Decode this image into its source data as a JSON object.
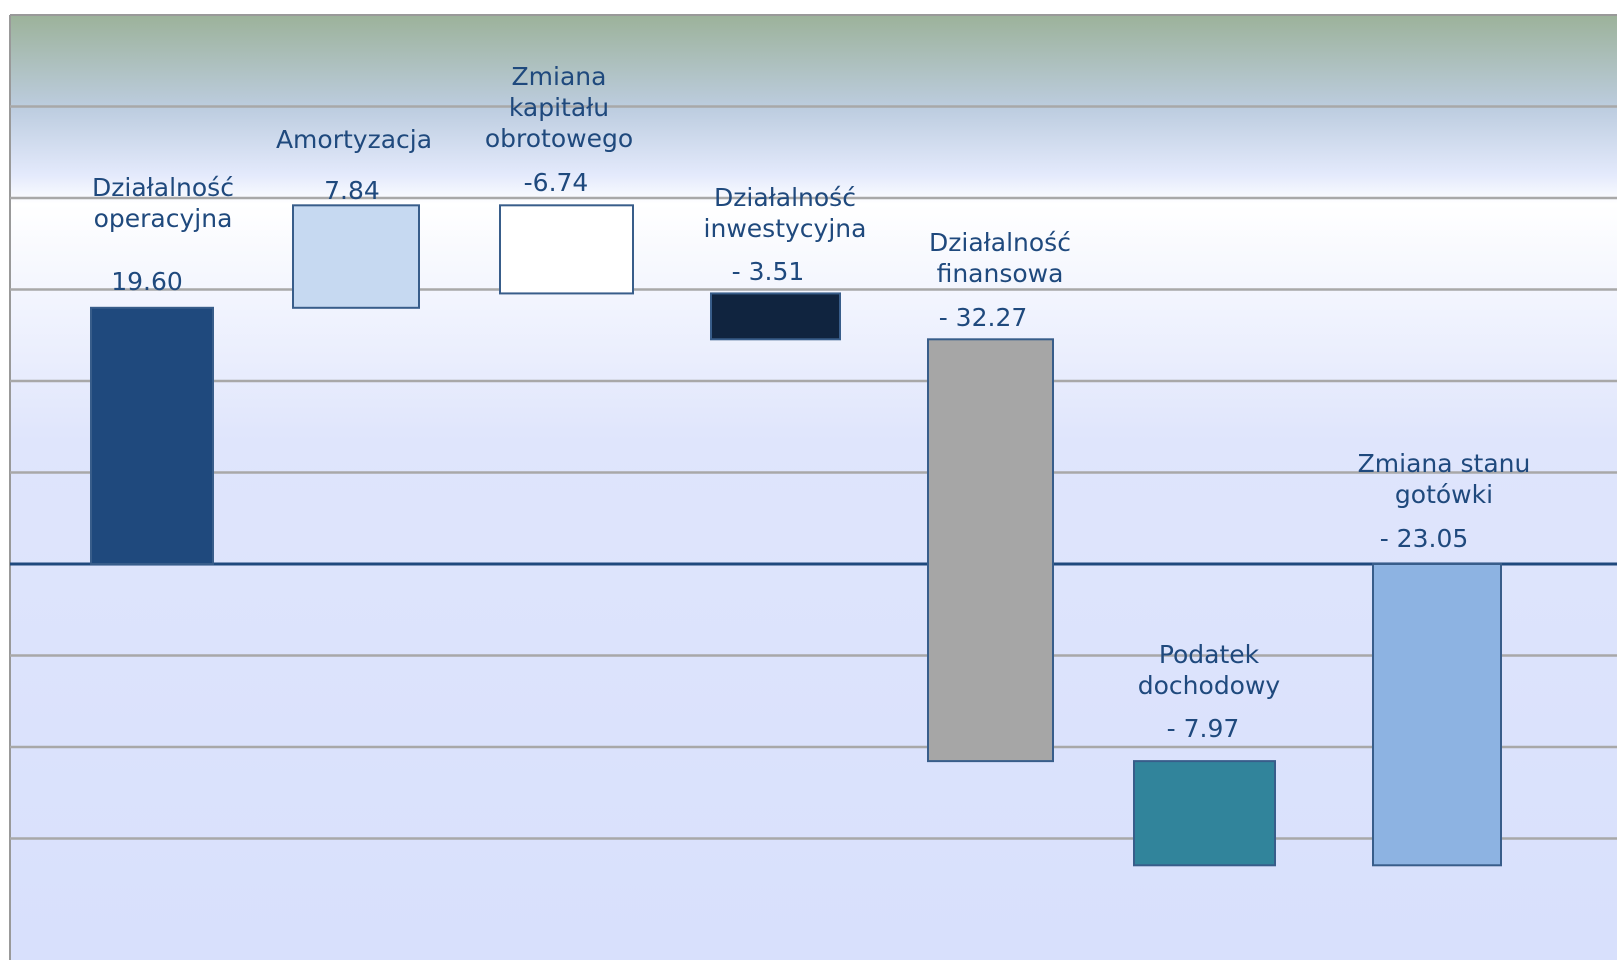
{
  "chart_data": {
    "type": "waterfall",
    "categories": [
      "Działalność operacyjna",
      "Amortyzacja",
      "Zmiana kapitału obrotowego",
      "Działalność inwestycyjna",
      "Działalność finansowa",
      "Podatek dochodowy",
      "Zmiana stanu gotówki"
    ],
    "values": [
      19.6,
      7.84,
      -6.74,
      -3.51,
      -32.27,
      -7.97,
      -23.05
    ],
    "value_labels": [
      "19.60",
      "7.84",
      "-6.74",
      "- 3.51",
      "- 32.27",
      "- 7.97",
      "- 23.05"
    ],
    "colors": [
      "#1f497d",
      "#c6d9f1",
      "#ffffff",
      "#10243f",
      "#a6a6a6",
      "#31849b",
      "#8db3e2"
    ],
    "ylim": [
      -28,
      42
    ],
    "yticks": [
      -21,
      -14,
      -7,
      0,
      7,
      14,
      21,
      28,
      35
    ],
    "grid": true
  }
}
